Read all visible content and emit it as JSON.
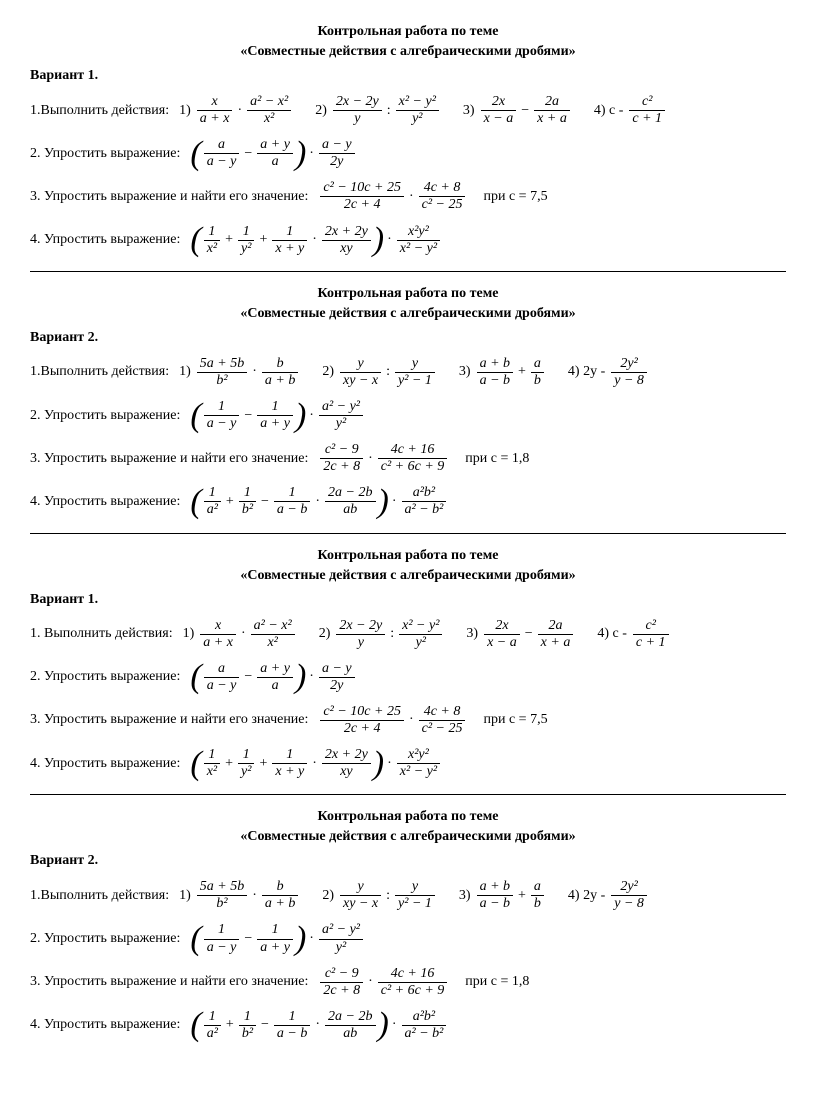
{
  "title1": "Контрольная работа по теме",
  "title2": "«Совместные действия с алгебраическими дробями»",
  "variant1": "Вариант 1.",
  "variant2": "Вариант 2.",
  "t1_label": "1.Выполнить действия:",
  "t1b_label": "1. Выполнить действия:",
  "t2_label": " 2. Упростить выражение:",
  "t2b_label": "2. Упростить выражение:",
  "t3_label": "3. Упростить выражение и найти его значение:",
  "t4_label": "4. Упростить выражение:",
  "n1": "1)",
  "n2": "2)",
  "n3": "3)",
  "n4": "4) с -",
  "n4b": "4) 2у -",
  "pri_c75": "при с = 7,5",
  "pri_c18": "при с = 1,8",
  "v1_e1_a": "x",
  "v1_e1_b": "a + x",
  "v1_e1_c": "a² − x²",
  "v1_e1_d": "x²",
  "v1_e2_a": "2x − 2y",
  "v1_e2_b": "y",
  "v1_e2_c": "x² − y²",
  "v1_e2_d": "y²",
  "v1_e3_a": "2x",
  "v1_e3_b": "x − a",
  "v1_e3_c": "2a",
  "v1_e3_d": "x + a",
  "v1_e4_a": "c²",
  "v1_e4_b": "c + 1",
  "v1_t2_a": "a",
  "v1_t2_b": "a − y",
  "v1_t2_c": "a + y",
  "v1_t2_d": "a",
  "v1_t2_e": "a − y",
  "v1_t2_f": "2y",
  "v1_t3_a": "c² − 10c + 25",
  "v1_t3_b": "2c + 4",
  "v1_t3_c": "4c + 8",
  "v1_t3_d": "c² − 25",
  "v1_t4_a": "1",
  "v1_t4_b": "x²",
  "v1_t4_c": "1",
  "v1_t4_d": "y²",
  "v1_t4_e": "1",
  "v1_t4_f": "x + y",
  "v1_t4_g": "2x + 2y",
  "v1_t4_h": "xy",
  "v1_t4_i": "x²y²",
  "v1_t4_j": "x² − y²",
  "v2_e1_a": "5a + 5b",
  "v2_e1_b": "b²",
  "v2_e1_c": "b",
  "v2_e1_d": "a + b",
  "v2_e2_a": "y",
  "v2_e2_b": "xy − x",
  "v2_e2_c": "y",
  "v2_e2_d": "y² − 1",
  "v2_e3_a": "a + b",
  "v2_e3_b": "a − b",
  "v2_e3_c": "a",
  "v2_e3_d": "b",
  "v2_e4_a": "2y²",
  "v2_e4_b": "y − 8",
  "v2_t2_a": "1",
  "v2_t2_b": "a − y",
  "v2_t2_c": "1",
  "v2_t2_d": "a + y",
  "v2_t2_e": "a² − y²",
  "v2_t2_f": "y²",
  "v2_t3_a": "c² − 9",
  "v2_t3_b": "2c + 8",
  "v2_t3_c": "4c + 16",
  "v2_t3_d": "c² + 6c + 9",
  "v2_t4_a": "1",
  "v2_t4_b": "a²",
  "v2_t4_c": "1",
  "v2_t4_d": "b²",
  "v2_t4_e": "1",
  "v2_t4_f": "a − b",
  "v2_t4_g": "2a − 2b",
  "v2_t4_h": "ab",
  "v2_t4_i": "a²b²",
  "v2_t4_j": "a² − b²"
}
